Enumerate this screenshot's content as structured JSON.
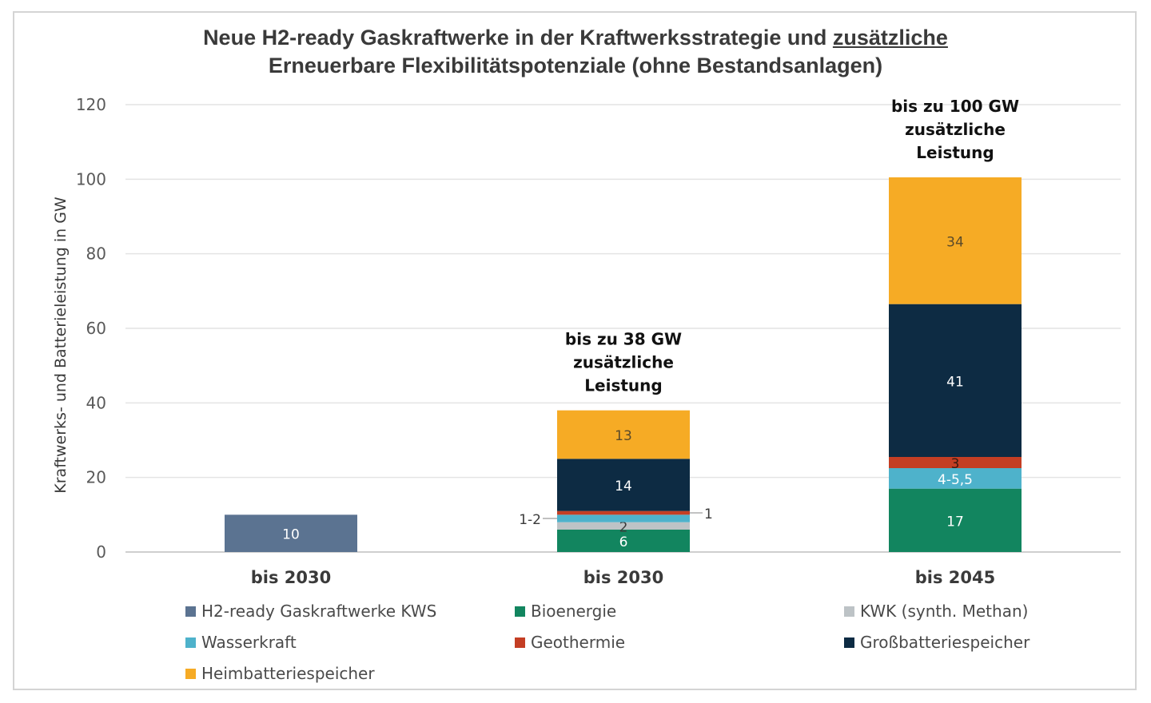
{
  "chart_data": {
    "type": "bar",
    "stacked": true,
    "title_line1_a": "Neue H2-ready Gaskraftwerke in der Kraftwerksstrategie und ",
    "title_line1_b": "zusätzliche",
    "title_line2": "Erneuerbare Flexibilitätspotenziale (ohne Bestandsanlagen)",
    "ylabel": "Kraftwerks- und Batterieleistung in GW",
    "xlabel": "",
    "ylim": [
      0,
      120
    ],
    "yticks": [
      "0",
      "20",
      "40",
      "60",
      "80",
      "100",
      "120"
    ],
    "grid": true,
    "legend_position": "bottom",
    "categories": [
      "bis 2030",
      "bis 2030",
      "bis 2045"
    ],
    "series": [
      {
        "name": "H2-ready Gaskraftwerke KWS",
        "color": "#5b7391",
        "values": [
          10,
          0,
          0
        ],
        "labels": [
          "10",
          "",
          ""
        ]
      },
      {
        "name": "Bioenergie",
        "color": "#12855f",
        "values": [
          0,
          6,
          17
        ],
        "labels": [
          "",
          "6",
          "17"
        ]
      },
      {
        "name": "KWK (synth. Methan)",
        "color": "#bdc3c6",
        "values": [
          0,
          2,
          0
        ],
        "labels": [
          "",
          "2",
          ""
        ]
      },
      {
        "name": "Wasserkraft",
        "color": "#4eb2cb",
        "values": [
          0,
          2,
          5.5
        ],
        "labels": [
          "",
          "1-2",
          "4-5,5"
        ]
      },
      {
        "name": "Geothermie",
        "color": "#c43e24",
        "values": [
          0,
          1,
          3
        ],
        "labels": [
          "",
          "1",
          "3"
        ]
      },
      {
        "name": "Großbatteriespeicher",
        "color": "#0d2b43",
        "values": [
          0,
          14,
          41
        ],
        "labels": [
          "",
          "14",
          "41"
        ]
      },
      {
        "name": "Heimbatteriespeicher",
        "color": "#f6ab25",
        "values": [
          0,
          13,
          34
        ],
        "labels": [
          "",
          "13",
          "34"
        ]
      }
    ],
    "annotations": [
      {
        "category_index": 1,
        "lines": [
          "bis zu 38 GW",
          "zusätzliche",
          "Leistung"
        ]
      },
      {
        "category_index": 2,
        "lines": [
          "bis zu 100 GW",
          "zusätzliche",
          "Leistung"
        ]
      }
    ]
  }
}
